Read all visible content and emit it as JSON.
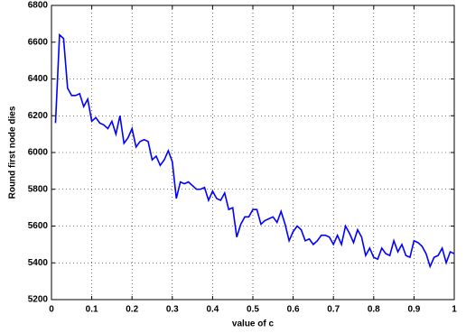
{
  "chart_data": {
    "type": "line",
    "x_label": "value of c",
    "y_label": "Round first node dies",
    "x": [
      0.01,
      0.02,
      0.03,
      0.04,
      0.05,
      0.06,
      0.07,
      0.08,
      0.09,
      0.1,
      0.11,
      0.12,
      0.13,
      0.14,
      0.15,
      0.16,
      0.17,
      0.18,
      0.19,
      0.2,
      0.21,
      0.22,
      0.23,
      0.24,
      0.25,
      0.26,
      0.27,
      0.28,
      0.29,
      0.3,
      0.31,
      0.32,
      0.33,
      0.34,
      0.35,
      0.36,
      0.37,
      0.38,
      0.39,
      0.4,
      0.41,
      0.42,
      0.43,
      0.44,
      0.45,
      0.46,
      0.47,
      0.48,
      0.49,
      0.5,
      0.51,
      0.52,
      0.53,
      0.54,
      0.55,
      0.56,
      0.57,
      0.58,
      0.59,
      0.6,
      0.61,
      0.62,
      0.63,
      0.64,
      0.65,
      0.66,
      0.67,
      0.68,
      0.69,
      0.7,
      0.71,
      0.72,
      0.73,
      0.74,
      0.75,
      0.76,
      0.77,
      0.78,
      0.79,
      0.8,
      0.81,
      0.82,
      0.83,
      0.84,
      0.85,
      0.86,
      0.87,
      0.88,
      0.89,
      0.9,
      0.91,
      0.92,
      0.93,
      0.94,
      0.95,
      0.96,
      0.97,
      0.98,
      0.99,
      1
    ],
    "series": [
      {
        "color": "#0000ff",
        "values": [
          6160,
          6640,
          6620,
          6350,
          6310,
          6310,
          6320,
          6250,
          6290,
          6170,
          6190,
          6160,
          6150,
          6130,
          6170,
          6100,
          6200,
          6050,
          6080,
          6130,
          6030,
          6060,
          6070,
          6060,
          5960,
          5980,
          5930,
          5960,
          6010,
          5950,
          5750,
          5840,
          5830,
          5840,
          5820,
          5800,
          5800,
          5810,
          5740,
          5790,
          5750,
          5740,
          5780,
          5690,
          5700,
          5540,
          5610,
          5650,
          5650,
          5690,
          5690,
          5610,
          5630,
          5640,
          5650,
          5620,
          5680,
          5610,
          5520,
          5570,
          5600,
          5580,
          5520,
          5530,
          5500,
          5520,
          5550,
          5550,
          5540,
          5500,
          5550,
          5500,
          5600,
          5560,
          5510,
          5580,
          5540,
          5440,
          5480,
          5430,
          5420,
          5480,
          5450,
          5440,
          5520,
          5460,
          5500,
          5440,
          5430,
          5520,
          5510,
          5490,
          5450,
          5380,
          5430,
          5440,
          5480,
          5400,
          5460,
          5450
        ]
      }
    ],
    "xlim": [
      0,
      1
    ],
    "xticks": [
      0,
      0.1,
      0.2,
      0.3,
      0.4,
      0.5,
      0.6,
      0.7,
      0.8,
      0.9,
      1
    ],
    "ylim": [
      5200,
      6800
    ],
    "yticks": [
      5200,
      5400,
      5600,
      5800,
      6000,
      6200,
      6400,
      6600,
      6800
    ],
    "grid": true
  }
}
